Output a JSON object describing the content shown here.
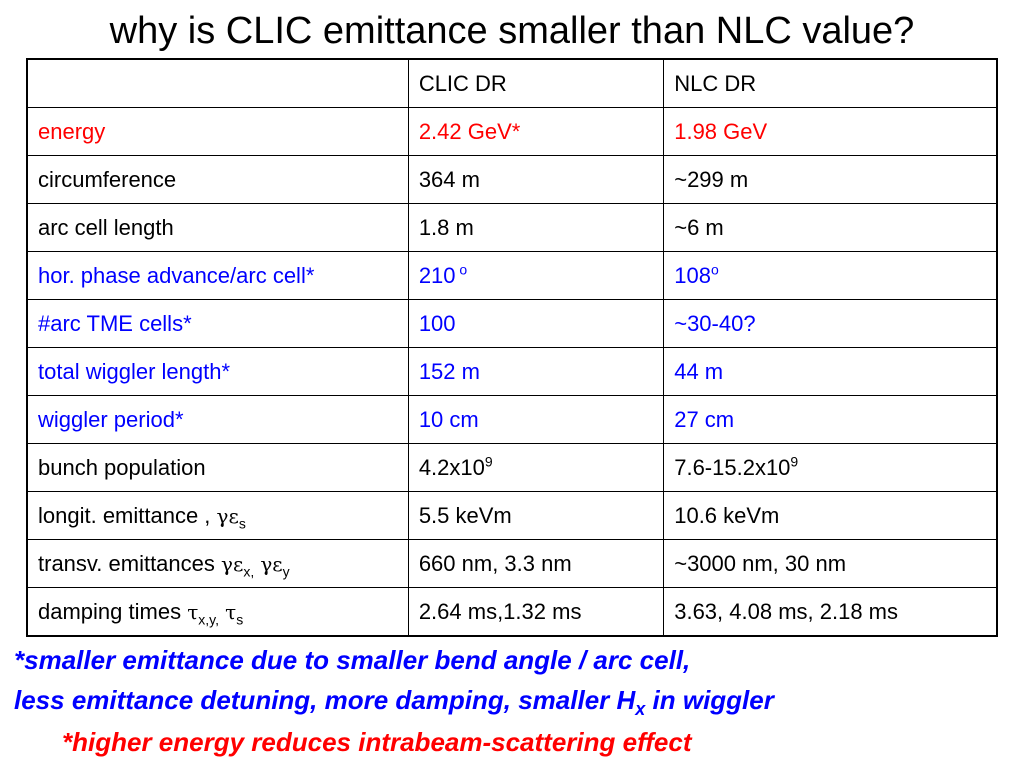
{
  "title": "why is CLIC emittance smaller than NLC value?",
  "table": {
    "headers": [
      "",
      "CLIC DR",
      "NLC DR"
    ],
    "rows": [
      {
        "label": "energy",
        "clic": "2.42 GeV*",
        "nlc": "1.98 GeV",
        "color": "#ff0000"
      },
      {
        "label": "circumference",
        "clic": "364 m",
        "nlc": "~299 m",
        "color": "#000000"
      },
      {
        "label": "arc cell length",
        "clic": "1.8 m",
        "nlc": "~6 m",
        "color": "#000000"
      },
      {
        "label": "hor. phase advance/arc cell*",
        "clic": "210 o",
        "nlc": "108o",
        "color": "#0000ff"
      },
      {
        "label": "#arc TME cells*",
        "clic": "100",
        "nlc": "~30-40?",
        "color": "#0000ff"
      },
      {
        "label": "total wiggler length*",
        "clic": "152 m",
        "nlc": "44 m",
        "color": "#0000ff"
      },
      {
        "label": "wiggler period*",
        "clic": "10 cm",
        "nlc": "27 cm",
        "color": "#0000ff"
      },
      {
        "label": "bunch population",
        "clic": "4.2x109",
        "nlc": "7.6-15.2x109",
        "color": "#000000"
      },
      {
        "label": "longit. emittance , γεs",
        "clic": "5.5 keVm",
        "nlc": "10.6 keVm",
        "color": "#000000"
      },
      {
        "label": "transv. emittances γεx, γεy",
        "clic": "660 nm, 3.3 nm",
        "nlc": "~3000 nm, 30 nm",
        "color": "#000000"
      },
      {
        "label": "damping times τx,y, τs",
        "clic": "2.64 ms,1.32 ms",
        "nlc": "3.63, 4.08 ms, 2.18 ms",
        "color": "#000000"
      }
    ]
  },
  "notes": {
    "line1": "*smaller emittance due to smaller bend angle / arc cell,",
    "line2_main": "less emittance detuning, more damping, smaller H",
    "line2_sub": "x",
    "line2_end": " in wiggler",
    "line3": "*higher energy reduces intrabeam-scattering effect"
  },
  "colors": {
    "red": "#ff0000",
    "blue": "#0000ff"
  }
}
